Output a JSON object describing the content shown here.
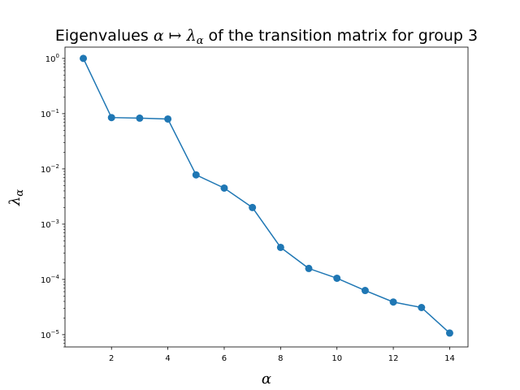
{
  "chart_data": {
    "type": "line",
    "title_parts": {
      "prefix": "Eigenvalues ",
      "math": "α ↦ λ",
      "math_sub": "α",
      "suffix": " of the transition matrix for group 3"
    },
    "xlabel": "α",
    "ylabel": "λ",
    "ylabel_sub": "α",
    "yscale": "log",
    "xlim": [
      0.35,
      14.65
    ],
    "ylim": [
      6e-06,
      1.6
    ],
    "x_ticks": [
      2,
      4,
      6,
      8,
      10,
      12,
      14
    ],
    "y_ticks": [
      {
        "value": 1,
        "base": "10",
        "exp": "0"
      },
      {
        "value": 0.1,
        "base": "10",
        "exp": "−1"
      },
      {
        "value": 0.01,
        "base": "10",
        "exp": "−2"
      },
      {
        "value": 0.001,
        "base": "10",
        "exp": "−3"
      },
      {
        "value": 0.0001,
        "base": "10",
        "exp": "−4"
      },
      {
        "value": 1e-05,
        "base": "10",
        "exp": "−5"
      }
    ],
    "series": [
      {
        "name": "eigenvalues",
        "color": "#1f77b4",
        "marker": "circle",
        "x": [
          1,
          2,
          3,
          4,
          5,
          6,
          7,
          8,
          9,
          10,
          11,
          12,
          13,
          14
        ],
        "values": [
          1.0,
          0.085,
          0.083,
          0.08,
          0.0078,
          0.0045,
          0.002,
          0.00038,
          0.000158,
          0.000105,
          6.3e-05,
          3.9e-05,
          3.1e-05,
          1.07e-05
        ]
      }
    ]
  }
}
